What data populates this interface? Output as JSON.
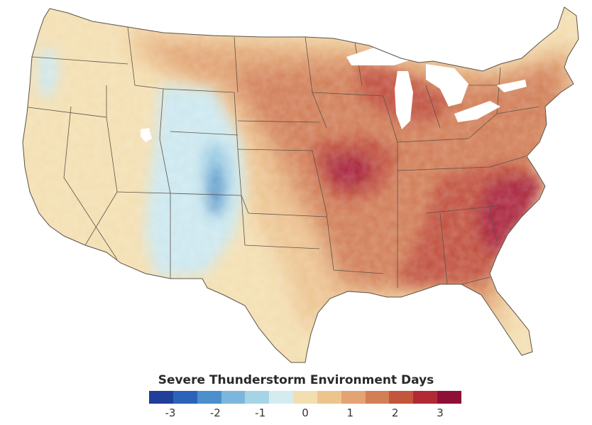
{
  "legend": {
    "title": "Severe Thunderstorm Environment Days",
    "ticks": [
      "-3",
      "-2",
      "-1",
      "0",
      "1",
      "2",
      "3"
    ],
    "colors": [
      "#1f3f9a",
      "#2a63b8",
      "#4b8fcc",
      "#7db6dc",
      "#a6d4e6",
      "#d4ecf0",
      "#f3deb0",
      "#eec48d",
      "#e3a372",
      "#d47e55",
      "#c2553b",
      "#b12a35",
      "#8f1037"
    ]
  },
  "map": {
    "colors": {
      "ocean": "#ffffff",
      "neutral": "#f3deb0",
      "light_blue": "#cbe7ef",
      "mid_blue": "#8fc6e0",
      "deep_blue": "#3f86c4",
      "peach": "#ecc28f",
      "orange": "#e0a070",
      "rust": "#d07c54",
      "red": "#c0503e",
      "crimson": "#a8223a",
      "border": "#5c5347"
    }
  }
}
